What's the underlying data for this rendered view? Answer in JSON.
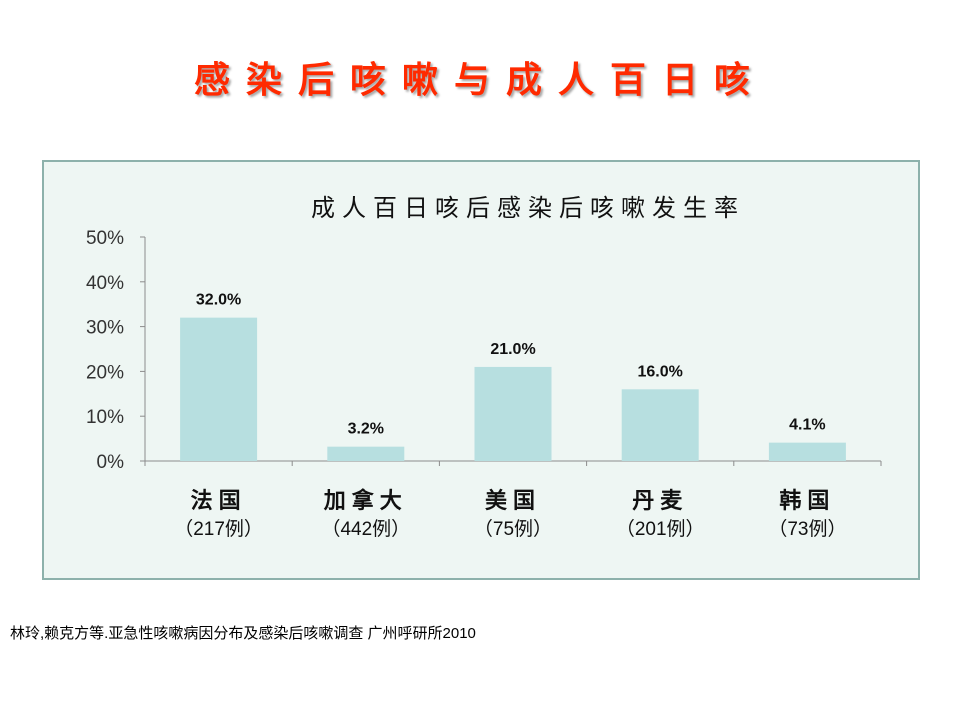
{
  "slide": {
    "title": "感染后咳嗽与成人百日咳",
    "citation": "林玲,赖克方等.亚急性咳嗽病因分布及感染后咳嗽调查  广州呼研所2010"
  },
  "colors": {
    "title": "#ff2a00",
    "chart_background": "#eef6f3",
    "chart_border": "#8db1ab",
    "bar": "#b7dfe0",
    "axis": "#8c8c8c"
  },
  "chart_data": {
    "type": "bar",
    "title": "成人百日咳后感染后咳嗽发生率",
    "categories": [
      "法国",
      "加拿大",
      "美国",
      "丹麦",
      "韩国"
    ],
    "category_sublabels": [
      "（217例）",
      "（442例）",
      "（75例）",
      "（201例）",
      "（73例）"
    ],
    "values": [
      32.0,
      3.2,
      21.0,
      16.0,
      4.1
    ],
    "data_labels": [
      "32.0%",
      "3.2%",
      "21.0%",
      "16.0%",
      "4.1%"
    ],
    "y_ticks": [
      "0%",
      "10%",
      "20%",
      "30%",
      "40%",
      "50%"
    ],
    "ylim": [
      0,
      50
    ],
    "grid": false,
    "legend": "none"
  }
}
